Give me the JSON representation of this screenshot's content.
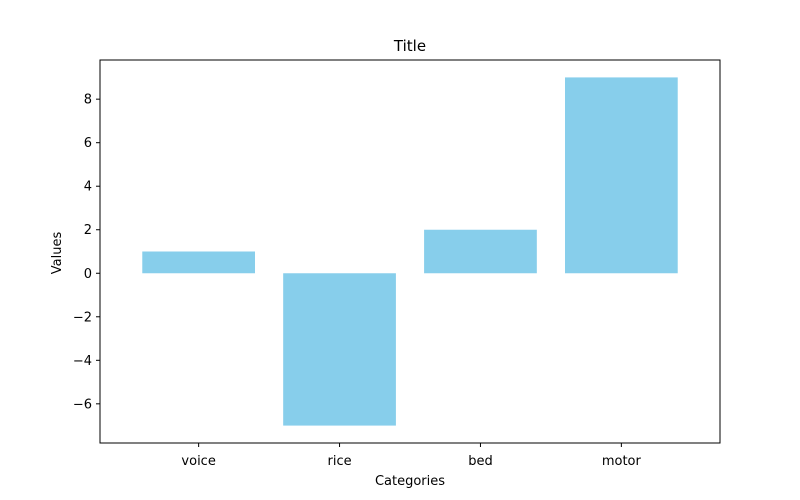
{
  "chart_data": {
    "type": "bar",
    "title": "Title",
    "xlabel": "Categories",
    "ylabel": "Values",
    "categories": [
      "voice",
      "rice",
      "bed",
      "motor"
    ],
    "values": [
      1,
      -7,
      2,
      9
    ],
    "ylim": [
      -7.8,
      9.8
    ],
    "yticks": [
      -6,
      -4,
      -2,
      0,
      2,
      4,
      6,
      8
    ],
    "ytick_labels": [
      "−6",
      "−4",
      "−2",
      "0",
      "2",
      "4",
      "6",
      "8"
    ],
    "bar_color": "#87ceeb",
    "grid": false,
    "legend": "none"
  }
}
